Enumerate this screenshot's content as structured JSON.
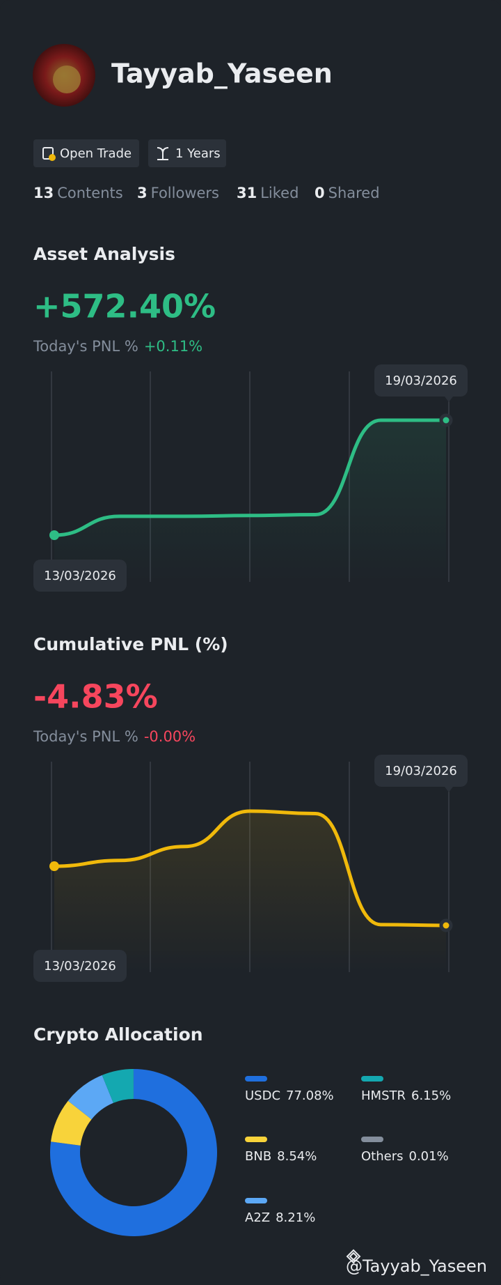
{
  "profile": {
    "name": "Tayyab_Yaseen",
    "badges": [
      "Open Trade",
      "1 Years"
    ],
    "stats": [
      {
        "count": 13,
        "label": "Contents"
      },
      {
        "count": 3,
        "label": "Followers"
      },
      {
        "count": 31,
        "label": "Liked"
      },
      {
        "count": 0,
        "label": "Shared"
      }
    ]
  },
  "chart_data": [
    {
      "type": "line",
      "title": "Asset Analysis",
      "headline": "+572.40%",
      "today_label": "Today's PNL %",
      "today_value": "+0.11%",
      "categories": [
        "13/03/2026",
        null,
        null,
        null,
        null,
        null,
        "19/03/2026"
      ],
      "values": [
        480,
        495.2,
        495.2,
        495.8,
        496.5,
        572.4,
        572.4
      ],
      "color": "#2ebd85",
      "headline_color": "#2ebd85"
    },
    {
      "type": "line",
      "title": "Cumulative PNL (%)",
      "headline": "-4.83%",
      "today_label": "Today's PNL %",
      "today_value": "-0.00%",
      "categories": [
        "13/03/2026",
        null,
        null,
        null,
        null,
        null,
        "19/03/2026"
      ],
      "values": [
        2.37,
        3.07,
        4.77,
        9.07,
        8.77,
        -4.73,
        -4.83
      ],
      "color": "#f0b90b",
      "headline_color": "#f6465d"
    },
    {
      "type": "donut",
      "title": "Crypto Allocation",
      "categories": [
        "USDC",
        "BNB",
        "A2Z",
        "HMSTR",
        "Others"
      ],
      "values": [
        77.08,
        8.54,
        8.21,
        6.15,
        0.01
      ],
      "value_labels": [
        "77.08%",
        "8.54%",
        "8.21%",
        "6.15%",
        "0.01%"
      ],
      "colors": [
        "#1f6fde",
        "#f8d33a",
        "#5ca8f5",
        "#14a8b0",
        "#848e9c"
      ]
    }
  ],
  "footer": "@Tayyab_Yaseen"
}
